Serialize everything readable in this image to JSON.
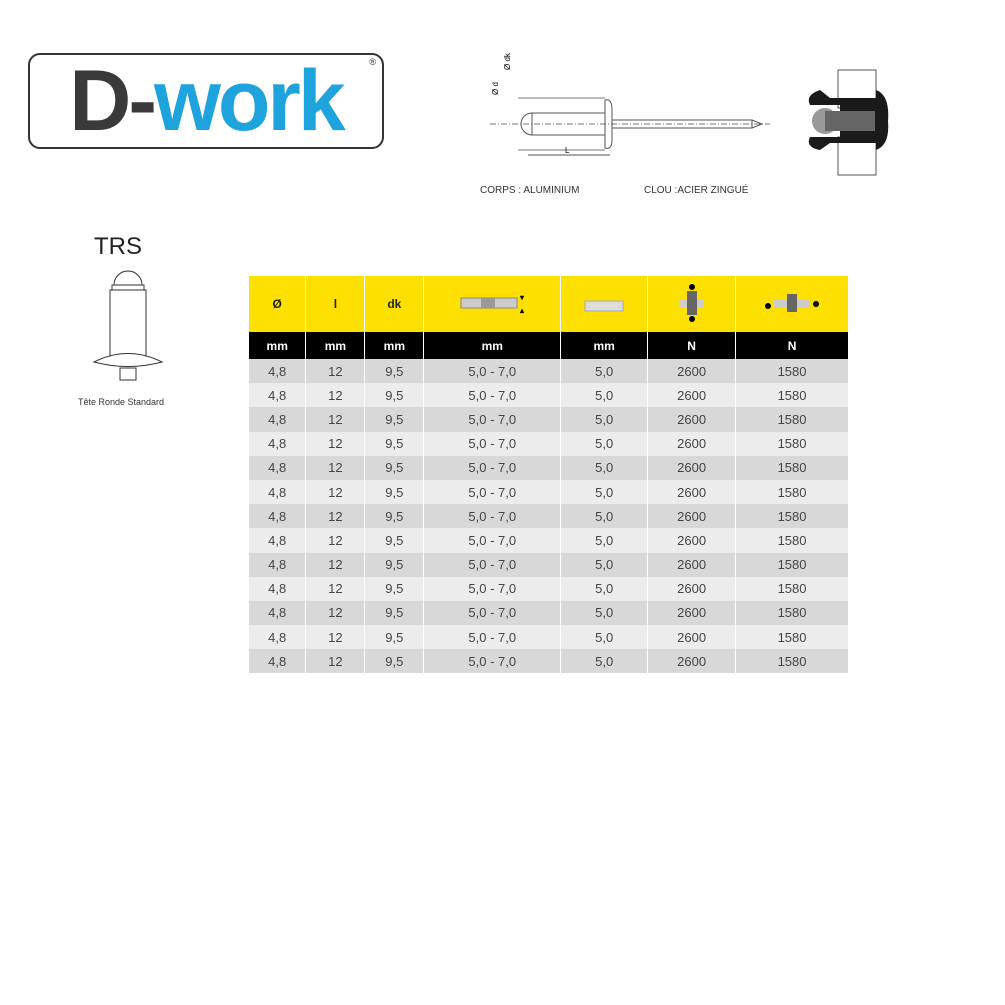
{
  "logo": {
    "text_dark": "D-",
    "text_blue": "work",
    "registered": "®"
  },
  "diagram": {
    "labels": {
      "d": "Ø d",
      "dk": "Ø dk",
      "L": "L"
    },
    "body_material": "CORPS : ALUMINIUM",
    "mandrel_material": "CLOU :ACIER ZINGUÉ"
  },
  "head_type": {
    "code": "TRS",
    "caption": "Tête Ronde Standard"
  },
  "table": {
    "headers": [
      "Ø",
      "l",
      "dk",
      "grip-range-icon",
      "drill-icon",
      "shear-icon",
      "tensile-icon"
    ],
    "units": [
      "mm",
      "mm",
      "mm",
      "mm",
      "mm",
      "N",
      "N"
    ],
    "rows": [
      [
        "4,8",
        "12",
        "9,5",
        "5,0 - 7,0",
        "5,0",
        "2600",
        "1580"
      ],
      [
        "4,8",
        "12",
        "9,5",
        "5,0 - 7,0",
        "5,0",
        "2600",
        "1580"
      ],
      [
        "4,8",
        "12",
        "9,5",
        "5,0 - 7,0",
        "5,0",
        "2600",
        "1580"
      ],
      [
        "4,8",
        "12",
        "9,5",
        "5,0 - 7,0",
        "5,0",
        "2600",
        "1580"
      ],
      [
        "4,8",
        "12",
        "9,5",
        "5,0 - 7,0",
        "5,0",
        "2600",
        "1580"
      ],
      [
        "4,8",
        "12",
        "9,5",
        "5,0 - 7,0",
        "5,0",
        "2600",
        "1580"
      ],
      [
        "4,8",
        "12",
        "9,5",
        "5,0 - 7,0",
        "5,0",
        "2600",
        "1580"
      ],
      [
        "4,8",
        "12",
        "9,5",
        "5,0 - 7,0",
        "5,0",
        "2600",
        "1580"
      ],
      [
        "4,8",
        "12",
        "9,5",
        "5,0 - 7,0",
        "5,0",
        "2600",
        "1580"
      ],
      [
        "4,8",
        "12",
        "9,5",
        "5,0 - 7,0",
        "5,0",
        "2600",
        "1580"
      ],
      [
        "4,8",
        "12",
        "9,5",
        "5,0 - 7,0",
        "5,0",
        "2600",
        "1580"
      ],
      [
        "4,8",
        "12",
        "9,5",
        "5,0 - 7,0",
        "5,0",
        "2600",
        "1580"
      ],
      [
        "4,8",
        "12",
        "9,5",
        "5,0 - 7,0",
        "5,0",
        "2600",
        "1580"
      ]
    ]
  },
  "colors": {
    "header_yellow": "#fde000",
    "brand_blue": "#1ea3dc"
  }
}
